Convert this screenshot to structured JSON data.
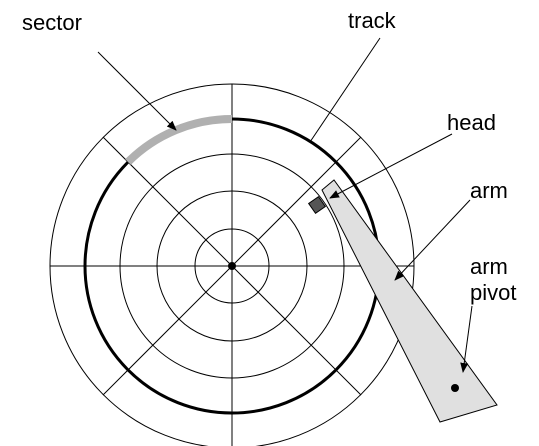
{
  "labels": {
    "sector": "sector",
    "track": "track",
    "head": "head",
    "arm": "arm",
    "arm_pivot": [
      "arm",
      "pivot"
    ]
  }
}
